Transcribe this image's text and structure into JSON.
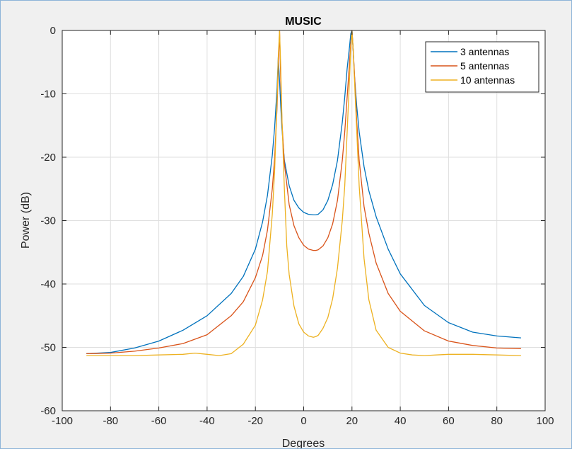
{
  "chart_data": {
    "type": "line",
    "title": "MUSIC",
    "xlabel": "Degrees",
    "ylabel": "Power (dB)",
    "xlim": [
      -100,
      100
    ],
    "ylim": [
      -60,
      0
    ],
    "xticks": [
      -100,
      -80,
      -60,
      -40,
      -20,
      0,
      20,
      40,
      60,
      80,
      100
    ],
    "yticks": [
      -60,
      -50,
      -40,
      -30,
      -20,
      -10,
      0
    ],
    "xtick_labels": [
      "-100",
      "-80",
      "-60",
      "-40",
      "-20",
      "0",
      "20",
      "40",
      "60",
      "80",
      "100"
    ],
    "ytick_labels": [
      "-60",
      "-50",
      "-40",
      "-30",
      "-20",
      "-10",
      "0"
    ],
    "grid": true,
    "legend_position": "top-right",
    "series": [
      {
        "name": "3 antennas",
        "color": "#0072bd",
        "x": [
          -90,
          -80,
          -70,
          -60,
          -50,
          -40,
          -30,
          -25,
          -20,
          -17,
          -15,
          -13,
          -12,
          -11,
          -10.5,
          -10,
          -9.5,
          -9,
          -8,
          -6,
          -4,
          -2,
          0,
          2,
          4,
          5,
          6,
          8,
          10,
          12,
          14,
          16,
          17,
          18,
          19,
          19.5,
          20,
          20.5,
          21,
          22,
          23,
          25,
          27,
          30,
          35,
          40,
          50,
          60,
          70,
          80,
          90
        ],
        "y": [
          -51,
          -50.8,
          -50.1,
          -49,
          -47.3,
          -45,
          -41.5,
          -38.8,
          -34.5,
          -30.2,
          -26,
          -19.7,
          -15.2,
          -9,
          -4.2,
          -8,
          -12,
          -15.5,
          -20.5,
          -24.5,
          -26.8,
          -28,
          -28.7,
          -29,
          -29.1,
          -29.1,
          -29,
          -28.3,
          -26.8,
          -24.3,
          -20.5,
          -14.5,
          -10.5,
          -6,
          -2.5,
          -0.5,
          0,
          -3,
          -7,
          -12,
          -16,
          -21.5,
          -25.3,
          -29.4,
          -34.5,
          -38.4,
          -43.4,
          -46.1,
          -47.6,
          -48.2,
          -48.5
        ]
      },
      {
        "name": "5 antennas",
        "color": "#d95319",
        "x": [
          -90,
          -80,
          -70,
          -60,
          -50,
          -40,
          -30,
          -25,
          -20,
          -17,
          -15,
          -13,
          -12,
          -11,
          -10.5,
          -10,
          -9.5,
          -9,
          -8,
          -6,
          -4,
          -2,
          0,
          2,
          4,
          5,
          6,
          8,
          10,
          12,
          14,
          16,
          17,
          18,
          19,
          19.5,
          20,
          20.5,
          21,
          22,
          23,
          25,
          27,
          30,
          35,
          40,
          50,
          60,
          70,
          80,
          90
        ],
        "y": [
          -51,
          -50.9,
          -50.6,
          -50.1,
          -49.4,
          -48,
          -45,
          -42.8,
          -39,
          -35.5,
          -31.5,
          -25,
          -20,
          -12,
          -6,
          0,
          -8,
          -14.5,
          -21,
          -27.5,
          -30.8,
          -32.7,
          -33.9,
          -34.5,
          -34.7,
          -34.7,
          -34.6,
          -34,
          -32.7,
          -30.5,
          -26.8,
          -20.5,
          -16,
          -10.5,
          -5,
          -2,
          0,
          -3,
          -6.5,
          -14.5,
          -20.5,
          -27.8,
          -32,
          -36.7,
          -41.5,
          -44.3,
          -47.4,
          -49,
          -49.7,
          -50.1,
          -50.2
        ]
      },
      {
        "name": "10 antennas",
        "color": "#edb120",
        "x": [
          -90,
          -80,
          -70,
          -60,
          -50,
          -45,
          -40,
          -35,
          -30,
          -25,
          -20,
          -17,
          -15,
          -13,
          -12,
          -11,
          -10.5,
          -10,
          -9.5,
          -9,
          -8,
          -7,
          -6,
          -4,
          -2,
          0,
          2,
          4,
          5,
          6,
          8,
          10,
          12,
          14,
          16,
          17,
          18,
          19,
          19.5,
          20,
          20.5,
          21,
          22,
          23,
          25,
          27,
          30,
          35,
          40,
          45,
          50,
          55,
          60,
          70,
          80,
          90
        ],
        "y": [
          -51.3,
          -51.3,
          -51.3,
          -51.2,
          -51.1,
          -50.9,
          -51.1,
          -51.3,
          -51,
          -49.5,
          -46.5,
          -42.5,
          -38,
          -29,
          -22,
          -11,
          -4,
          0,
          -6,
          -14,
          -25,
          -34,
          -38.5,
          -43.5,
          -46.3,
          -47.6,
          -48.2,
          -48.4,
          -48.3,
          -48.1,
          -47,
          -45.3,
          -42.3,
          -37.5,
          -30,
          -24.5,
          -16,
          -7.5,
          -3,
          0,
          -3,
          -7.5,
          -16,
          -24.5,
          -36,
          -42.5,
          -47.3,
          -50,
          -50.9,
          -51.2,
          -51.3,
          -51.2,
          -51.1,
          -51.1,
          -51.2,
          -51.3
        ]
      }
    ]
  }
}
